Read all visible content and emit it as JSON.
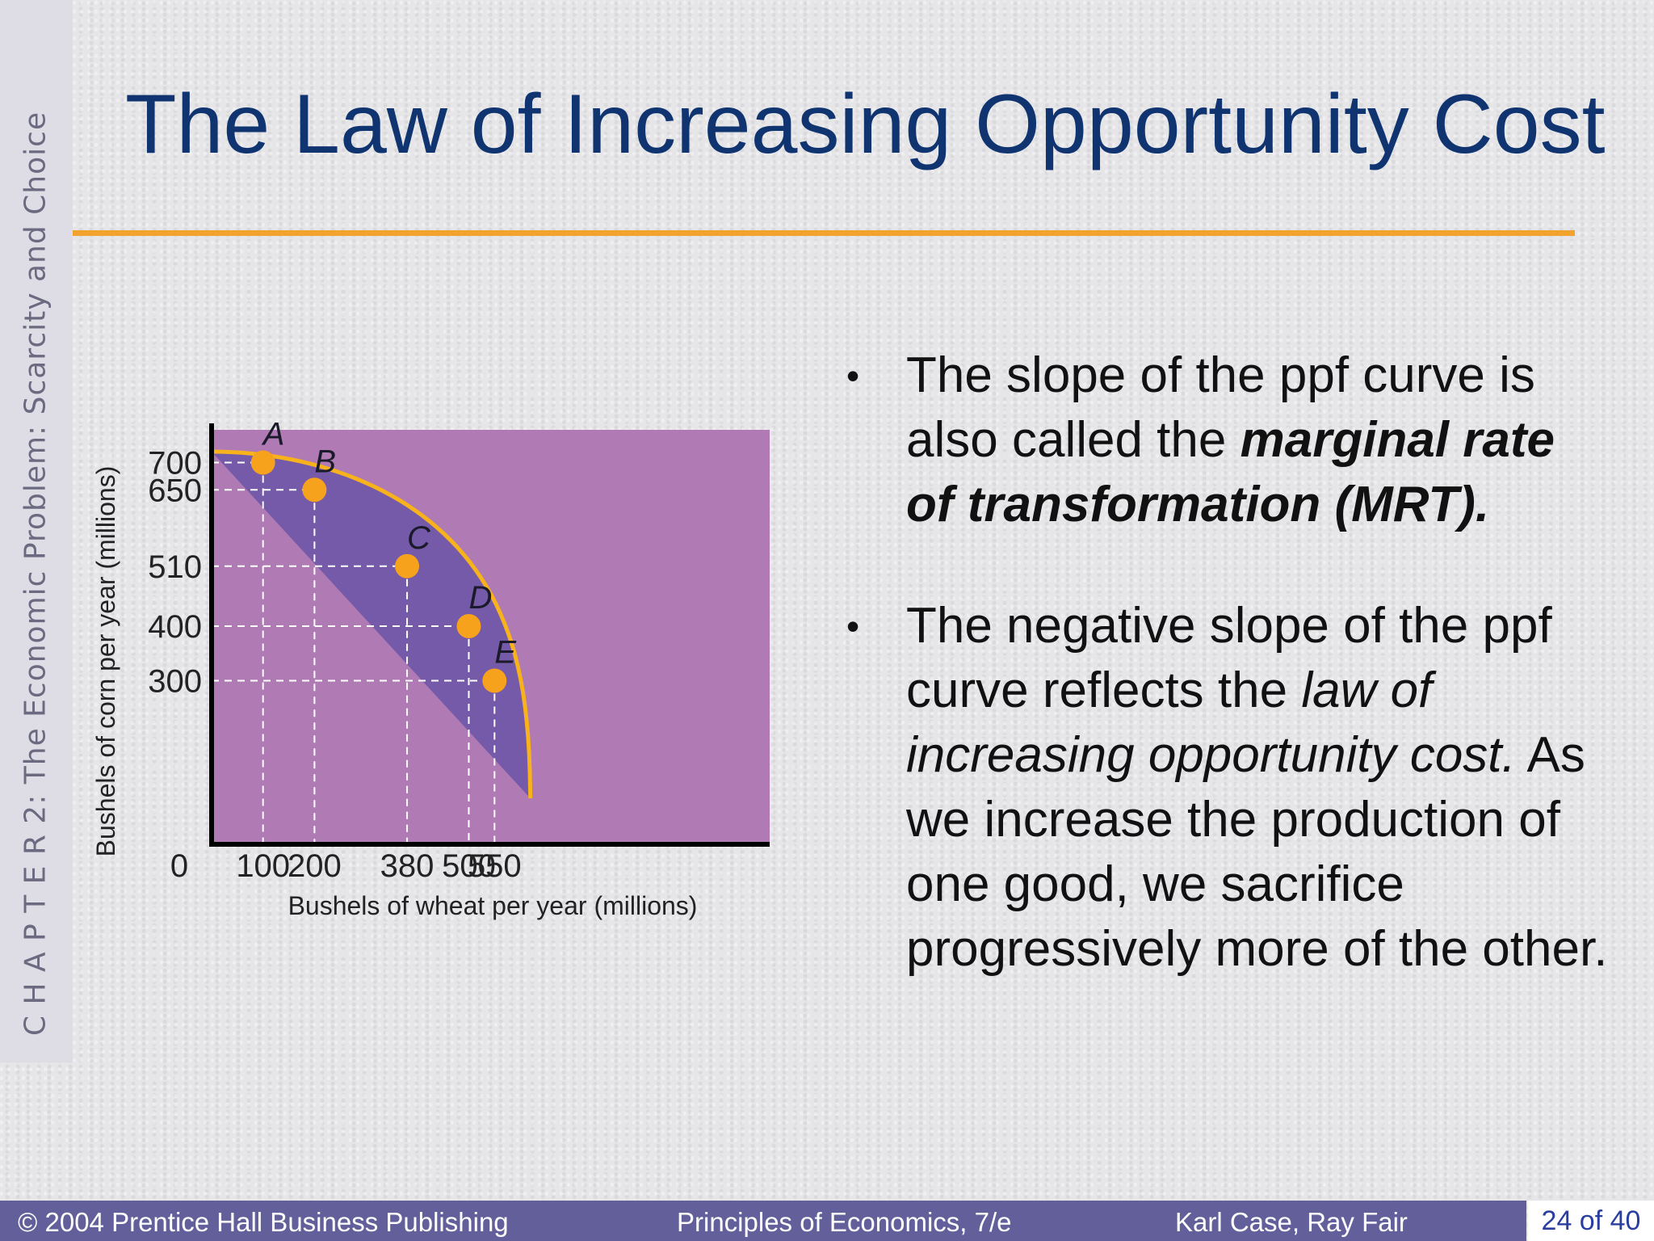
{
  "sidebar": {
    "text": "C H A P T E R  2:  The Economic Problem:  Scarcity and Choice"
  },
  "title": "The Law of Increasing Opportunity Cost",
  "bullets": [
    {
      "parts": [
        {
          "text": "The slope of the ppf curve is also called the ",
          "style": "normal"
        },
        {
          "text": "marginal rate of transformation (MRT).",
          "style": "bold-italic"
        }
      ]
    },
    {
      "parts": [
        {
          "text": "The negative slope of the ppf curve reflects the ",
          "style": "normal"
        },
        {
          "text": "law of increasing opportunity cost.",
          "style": "italic"
        },
        {
          "text": " As we increase the production of one good, we sacrifice progressively more of the other.",
          "style": "normal"
        }
      ]
    }
  ],
  "footer": {
    "copyright": "© 2004 Prentice Hall Business Publishing",
    "book": "Principles of Economics, 7/e",
    "authors": "Karl Case, Ray Fair",
    "page": "24 of 40"
  },
  "colors": {
    "title": "#0f3470",
    "rule": "#f2a32e",
    "feasible_region": "#745aa8",
    "outer_region": "#b07ab4",
    "curve": "#f7b21c",
    "points": "#f7a21c",
    "footer": "#625f9a"
  },
  "chart_data": {
    "type": "line",
    "xlabel": "Bushels of wheat per year (millions)",
    "ylabel": "Bushels of corn per year (millions)",
    "xlim": [
      0,
      560
    ],
    "ylim": [
      0,
      720
    ],
    "origin_label": "0",
    "x_ticks": [
      100,
      200,
      380,
      500,
      550
    ],
    "y_ticks": [
      700,
      650,
      510,
      400,
      300
    ],
    "points": [
      {
        "label": "A",
        "x": 100,
        "y": 700
      },
      {
        "label": "B",
        "x": 200,
        "y": 650
      },
      {
        "label": "C",
        "x": 380,
        "y": 510
      },
      {
        "label": "D",
        "x": 500,
        "y": 400
      },
      {
        "label": "E",
        "x": 550,
        "y": 300
      }
    ],
    "curve_ends": {
      "y_intercept": 720,
      "x_intercept": 620
    },
    "grid": "dashed guide lines from each point to both axes",
    "legend": "none"
  }
}
